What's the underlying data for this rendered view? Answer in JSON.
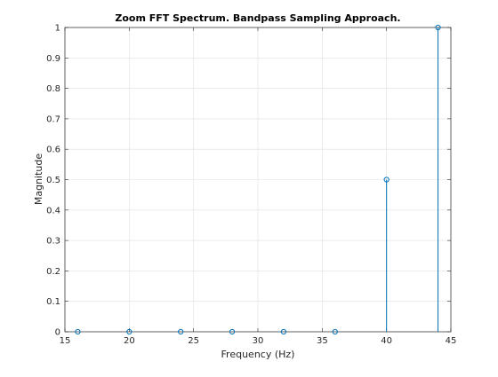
{
  "chart_data": {
    "type": "stem",
    "title": "Zoom FFT Spectrum. Bandpass Sampling Approach.",
    "xlabel": "Frequency (Hz)",
    "ylabel": "Magnitude",
    "xlim": [
      15,
      45
    ],
    "ylim": [
      0,
      1
    ],
    "xticks": [
      15,
      20,
      25,
      30,
      35,
      40,
      45
    ],
    "yticks": [
      0,
      0.1,
      0.2,
      0.3,
      0.4,
      0.5,
      0.6,
      0.7,
      0.8,
      0.9,
      1
    ],
    "grid": true,
    "x": [
      16,
      20,
      24,
      28,
      32,
      36,
      40,
      44
    ],
    "y": [
      0,
      0,
      0,
      0,
      0,
      0,
      0.5,
      1
    ],
    "color": "#0072bd"
  }
}
